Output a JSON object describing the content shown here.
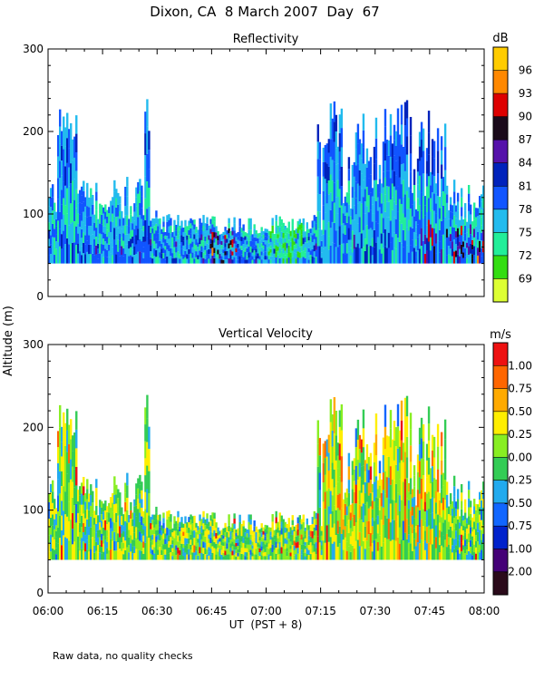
{
  "title": "Dixon, CA  8 March 2007  Day  67",
  "ylabel": "Altitude (m)",
  "xlabel": "UT  (PST + 8)",
  "footnote": "Raw data, no quality checks",
  "colors": {
    "reflectivity": [
      "#ddff33",
      "#33dd11",
      "#22ee99",
      "#22bbee",
      "#1155ff",
      "#0022bb",
      "#5511aa",
      "#1a0a1a",
      "#dd0000",
      "#ff8800",
      "#ffcc00"
    ],
    "velocity": [
      "#2a0a1a",
      "#440077",
      "#0022cc",
      "#1166ff",
      "#22aaee",
      "#33cc55",
      "#88ee22",
      "#ffee00",
      "#ffaa00",
      "#ff6600",
      "#ee1111"
    ]
  },
  "chart_data": [
    {
      "type": "heatmap",
      "title": "Reflectivity",
      "ylabel": "Altitude (m)",
      "xlabel": "UT  (PST + 8)",
      "x_range": [
        "06:00",
        "08:00"
      ],
      "x_ticks": [
        "06:00",
        "06:15",
        "06:30",
        "06:45",
        "07:00",
        "07:15",
        "07:30",
        "07:45",
        "08:00"
      ],
      "ylim": [
        0,
        300
      ],
      "y_ticks": [
        "0",
        "100",
        "200",
        "300"
      ],
      "colorbar": {
        "unit": "dB",
        "labels": [
          "96",
          "93",
          "90",
          "87",
          "84",
          "81",
          "78",
          "75",
          "72",
          "69"
        ],
        "range": [
          67,
          98
        ]
      },
      "note": "Radar echoes between ~40 m and ~140 m throughout, with plumes to ~220-280 m near 06:05, 06:27, 07:20 and 07:33-07:40; values mostly 72-81 dB."
    },
    {
      "type": "heatmap",
      "title": "Vertical Velocity",
      "ylabel": "Altitude (m)",
      "xlabel": "UT  (PST + 8)",
      "x_range": [
        "06:00",
        "08:00"
      ],
      "x_ticks": [
        "06:00",
        "06:15",
        "06:30",
        "06:45",
        "07:00",
        "07:15",
        "07:30",
        "07:45",
        "08:00"
      ],
      "ylim": [
        0,
        300
      ],
      "y_ticks": [
        "0",
        "100",
        "200",
        "300"
      ],
      "colorbar": {
        "unit": "m/s",
        "labels": [
          "1.00",
          "0.75",
          "0.50",
          "0.25",
          "0.00",
          "-0.25",
          "-0.50",
          "-0.75",
          "-1.00",
          "-2.00"
        ],
        "range": [
          -2.0,
          1.25
        ]
      },
      "note": "Mixed upward/downward motion, mostly -0.25 to 0.5 m/s, stronger updrafts in the 07:15-07:45 plumes."
    }
  ]
}
